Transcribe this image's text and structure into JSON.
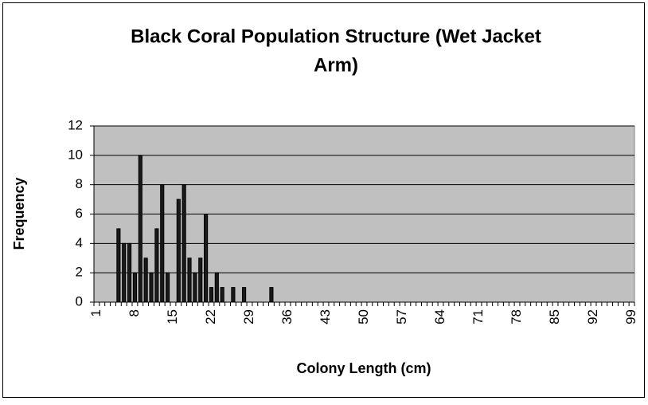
{
  "chart_data": {
    "type": "bar",
    "title": [
      "Black Coral Population Structure (Wet Jacket",
      "Arm)"
    ],
    "x_label": "Colony Length (cm)",
    "y_label": "Frequency",
    "categories": [
      1,
      null,
      null,
      null,
      null,
      null,
      null,
      8,
      null,
      null,
      null,
      null,
      null,
      null,
      15,
      null,
      null,
      null,
      null,
      null,
      null,
      22,
      null,
      null,
      null,
      null,
      null,
      null,
      29,
      null,
      null,
      null,
      null,
      null,
      null,
      36,
      null,
      null,
      null,
      null,
      null,
      null,
      43,
      null,
      null,
      null,
      null,
      null,
      null,
      50,
      null,
      null,
      null,
      null,
      null,
      null,
      57,
      null,
      null,
      null,
      null,
      null,
      null,
      64,
      null,
      null,
      null,
      null,
      null,
      null,
      71,
      null,
      null,
      null,
      null,
      null,
      null,
      78,
      null,
      null,
      null,
      null,
      null,
      null,
      85,
      null,
      null,
      null,
      null,
      null,
      null,
      92,
      null,
      null,
      null,
      null,
      null,
      null,
      99
    ],
    "values": [
      0,
      0,
      0,
      0,
      5,
      4,
      4,
      2,
      10,
      3,
      2,
      5,
      8,
      2,
      0,
      7,
      8,
      3,
      2,
      3,
      6,
      1,
      2,
      1,
      0,
      1,
      0,
      1,
      0,
      0,
      0,
      0,
      1,
      0,
      0,
      0,
      0,
      0,
      0,
      0,
      0,
      0,
      0,
      0,
      0,
      0,
      0,
      0,
      0,
      0,
      0,
      0,
      0,
      0,
      0,
      0,
      0,
      0,
      0,
      0,
      0,
      0,
      0,
      0,
      0,
      0,
      0,
      0,
      0,
      0,
      0,
      0,
      0,
      0,
      0,
      0,
      0,
      0,
      0,
      0,
      0,
      0,
      0,
      0,
      0,
      0,
      0,
      0,
      0,
      0,
      0,
      0,
      0,
      0,
      0,
      0,
      0,
      0,
      0
    ],
    "color": "#1a1a1a",
    "plot_background": "#c0c0c0",
    "ylim": [
      0,
      12
    ],
    "yticks": [
      0,
      2,
      4,
      6,
      8,
      10,
      12
    ],
    "grid": true
  }
}
